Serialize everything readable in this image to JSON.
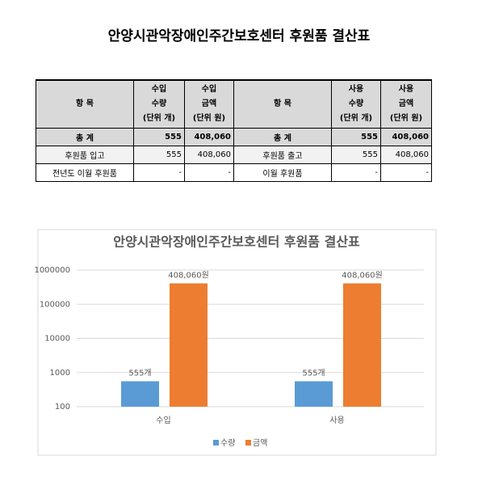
{
  "title": "안양시관악장애인주간보호센터 후원품 결산표",
  "table": {
    "header": [
      [
        "항 목"
      ],
      [
        "수입",
        "수량",
        "(단위 개)"
      ],
      [
        "수입",
        "금액",
        "(단위 원)"
      ],
      [
        "항 목"
      ],
      [
        "사용",
        "수량",
        "(단위 개)"
      ],
      [
        "사용",
        "금액",
        "(단위 원)"
      ]
    ],
    "rows": [
      [
        "총 계",
        "555",
        "408,060",
        "총 계",
        "555",
        "408,060"
      ],
      [
        "후원품 입고",
        "555",
        "408,060",
        "후원품 출고",
        "555",
        "408,060"
      ],
      [
        "전년도 이월 후원품",
        "-",
        "-",
        "이월 후원품",
        "-",
        "-"
      ]
    ]
  },
  "chart_data": {
    "type": "bar",
    "title": "안양시관악장애인주간보호센터 후원품 결산표",
    "categories": [
      "수입",
      "사용"
    ],
    "series": [
      {
        "name": "수량",
        "color": "#5b9bd5",
        "values": [
          555,
          555
        ],
        "value_labels": [
          "555개",
          "555개"
        ]
      },
      {
        "name": "금액",
        "color": "#ed7d31",
        "values": [
          408060,
          408060
        ],
        "value_labels": [
          "408,060원",
          "408,060원"
        ]
      }
    ],
    "log_scale": true,
    "ylim": [
      100,
      1000000
    ],
    "yticks": [
      100,
      1000,
      10000,
      100000,
      1000000
    ],
    "grid": true,
    "legend": "bottom"
  }
}
